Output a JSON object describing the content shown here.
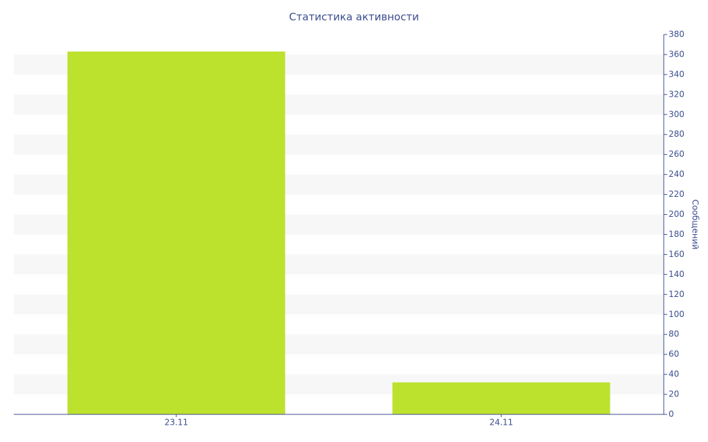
{
  "chart_data": {
    "type": "bar",
    "title": "Статистика активности",
    "y_label": "Сообщений",
    "categories": [
      "23.11",
      "24.11"
    ],
    "values": [
      363,
      32
    ],
    "color": "#bce22e",
    "ylim": [
      0,
      380
    ],
    "yticks": [
      0,
      20,
      40,
      60,
      80,
      100,
      120,
      140,
      160,
      180,
      200,
      220,
      240,
      260,
      280,
      300,
      320,
      340,
      360,
      380
    ],
    "y_axis_side": "right",
    "grid": true
  }
}
